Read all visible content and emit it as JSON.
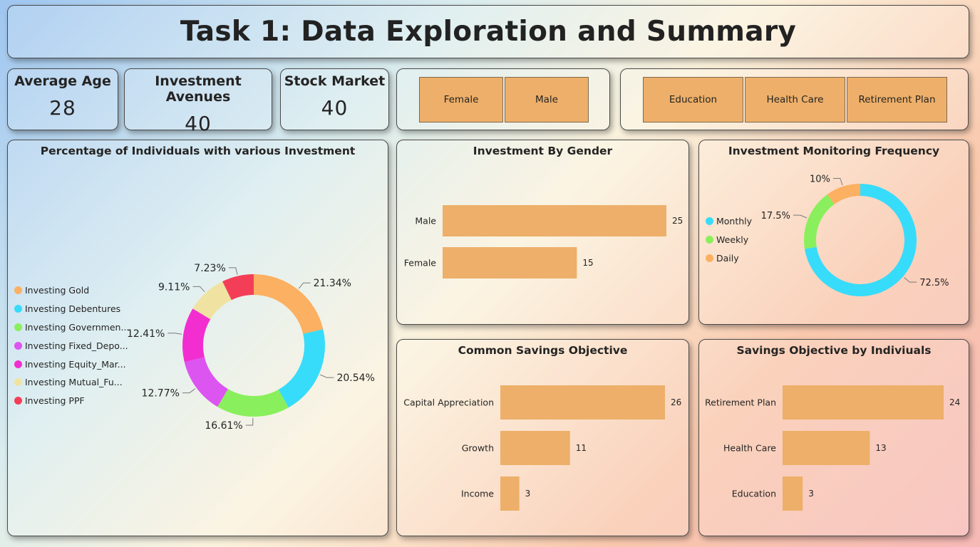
{
  "title": "Task 1: Data Exploration and Summary",
  "kpis": {
    "avg_age": {
      "label": "Average Age",
      "value": "28"
    },
    "investment_avenues": {
      "label": "Investment Avenues",
      "value": "40"
    },
    "stock_market": {
      "label": "Stock Market",
      "value": "40"
    }
  },
  "slicers": {
    "gender": [
      "Female",
      "Male"
    ],
    "objective": [
      "Education",
      "Health Care",
      "Retirement Plan"
    ]
  },
  "colors": {
    "bar": "#edaf69",
    "text": "#252423"
  },
  "chart_data": [
    {
      "id": "investment_pct",
      "type": "donut",
      "title": "Percentage of Individuals with various Investment",
      "legend_position": "left",
      "legend_labels": [
        "Investing Gold",
        "Investing Debentures",
        "Investing Governmen...",
        "Investing Fixed_Depo...",
        "Investing Equity_Mar...",
        "Investing  Mutual_Fu...",
        "Investing PPF"
      ],
      "slices": [
        {
          "label": "Investing Gold",
          "value": 21.34,
          "display": "21.34%",
          "color": "#fcb061"
        },
        {
          "label": "Investing Debentures",
          "value": 20.54,
          "display": "20.54%",
          "color": "#37dcfa"
        },
        {
          "label": "Investing Government_Bonds",
          "value": 16.61,
          "display": "16.61%",
          "color": "#8aef5c"
        },
        {
          "label": "Investing Fixed_Deposits",
          "value": 12.77,
          "display": "12.77%",
          "color": "#dc55f0"
        },
        {
          "label": "Investing Equity_Market",
          "value": 12.41,
          "display": "12.41%",
          "color": "#f22ed0"
        },
        {
          "label": "Investing Mutual_Funds",
          "value": 9.11,
          "display": "9.11%",
          "color": "#f0e3a2"
        },
        {
          "label": "Investing PPF",
          "value": 7.23,
          "display": "7.23%",
          "color": "#f43e58"
        }
      ]
    },
    {
      "id": "gender",
      "type": "bar",
      "orientation": "horizontal",
      "title": "Investment By Gender",
      "categories": [
        "Male",
        "Female"
      ],
      "values": [
        25,
        15
      ],
      "xlim": [
        0,
        25
      ]
    },
    {
      "id": "monitoring",
      "type": "donut",
      "title": "Investment Monitoring Frequency",
      "legend_position": "left",
      "legend_labels": [
        "Monthly",
        "Weekly",
        "Daily"
      ],
      "slices": [
        {
          "label": "Monthly",
          "value": 72.5,
          "display": "72.5%",
          "color": "#37dcfa"
        },
        {
          "label": "Weekly",
          "value": 17.5,
          "display": "17.5%",
          "color": "#8aef5c"
        },
        {
          "label": "Daily",
          "value": 10,
          "display": "10%",
          "color": "#fcb061"
        }
      ]
    },
    {
      "id": "savings_common",
      "type": "bar",
      "orientation": "horizontal",
      "title": "Common Savings Objective",
      "categories": [
        "Capital Appreciation",
        "Growth",
        "Income"
      ],
      "values": [
        26,
        11,
        3
      ],
      "xlim": [
        0,
        26
      ]
    },
    {
      "id": "savings_individual",
      "type": "bar",
      "orientation": "horizontal",
      "title": "Savings Objective by Indiviuals",
      "categories": [
        "Retirement Plan",
        "Health Care",
        "Education"
      ],
      "values": [
        24,
        13,
        3
      ],
      "xlim": [
        0,
        24
      ]
    }
  ]
}
